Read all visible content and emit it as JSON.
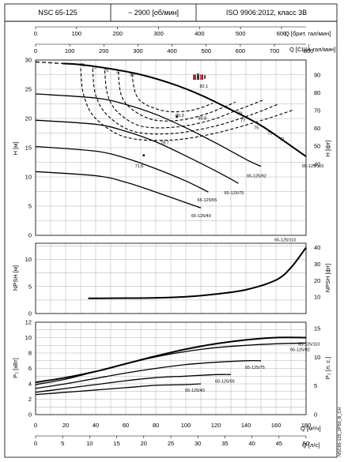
{
  "header": {
    "model": "NSC 65-125",
    "speed": "~ 2900 [об/мин]",
    "standard": "ISO 9906:2012, класс 3B"
  },
  "doc_code": "NSC65-125_2P50_B_CH",
  "colors": {
    "line": "#000000",
    "grid": "#b0b0b0",
    "logo_red": "#b0233a"
  },
  "chart_data": {
    "type": "line",
    "x_axis": {
      "label": "Q [м³/ч]",
      "range": [
        0,
        180
      ],
      "ticks": [
        0,
        20,
        40,
        60,
        80,
        100,
        120,
        140,
        160,
        180
      ],
      "label_l_s": "Q [л/с]",
      "ticks_l_s": [
        0,
        5,
        10,
        15,
        20,
        25,
        30,
        35,
        40,
        45,
        50
      ],
      "label_imp": "Q [брит. гал/мин]",
      "ticks_imp": [
        0,
        100,
        200,
        300,
        400,
        500,
        600
      ],
      "label_us": "Q [США гал/мин]",
      "ticks_us": [
        0,
        100,
        200,
        300,
        400,
        500,
        600,
        700,
        800
      ]
    },
    "panels": {
      "head": {
        "ylabel_left": "H [м]",
        "ylim": [
          0,
          30
        ],
        "yticks": [
          0,
          5,
          10,
          15,
          20,
          25,
          30
        ],
        "ylabel_right": "H [фт]",
        "yticks_right": [
          40,
          50,
          60,
          70,
          80,
          90
        ],
        "series": [
          {
            "name": "65-125/110",
            "x": [
              18,
              30,
              50,
              70,
              90,
              110,
              130,
              150,
              170,
              180
            ],
            "y": [
              29.4,
              29.2,
              28.5,
              27.5,
              26.0,
              24.0,
              21.5,
              18.8,
              15.3,
              13.5
            ]
          },
          {
            "name": "65-125/92",
            "x": [
              0,
              40,
              60,
              80,
              100,
              120,
              140,
              150
            ],
            "y": [
              24.2,
              23.5,
              22.4,
              20.7,
              18.4,
              15.8,
              13.0,
              11.8
            ]
          },
          {
            "name": "65-125/75",
            "x": [
              0,
              40,
              60,
              80,
              100,
              120,
              135
            ],
            "y": [
              19.7,
              19.0,
              17.8,
              16.0,
              13.6,
              11.0,
              8.9
            ]
          },
          {
            "name": "65-125/55",
            "x": [
              0,
              40,
              60,
              80,
              100,
              115
            ],
            "y": [
              15.2,
              14.4,
              13.2,
              11.4,
              9.3,
              7.4
            ]
          },
          {
            "name": "65-125/40",
            "x": [
              0,
              40,
              60,
              80,
              100,
              110
            ],
            "y": [
              10.9,
              10.2,
              9.1,
              7.4,
              5.6,
              4.7
            ]
          }
        ],
        "efficiency_labels": [
          "71",
          "73",
          "75",
          "77",
          "79",
          "82.1",
          "80.3",
          "80.8",
          "78.7",
          "71.6",
          "79",
          "77",
          "75",
          "73",
          "71"
        ]
      },
      "npsh": {
        "ylabel_left": "NPSH [м]",
        "ylim": [
          0,
          13
        ],
        "yticks": [
          0,
          5,
          10
        ],
        "ylabel_right": "NPSH [фт]",
        "yticks_right": [
          10,
          20,
          30,
          40
        ],
        "series": [
          {
            "name": "65-125/110",
            "x": [
              35,
              60,
              80,
              100,
              120,
              140,
              160,
              170,
              180
            ],
            "y": [
              2.8,
              2.85,
              2.9,
              3.1,
              3.6,
              4.4,
              6.2,
              8.5,
              12.2
            ]
          }
        ]
      },
      "power": {
        "ylabel_left": "P₂ [кВт]",
        "ylim": [
          0,
          12
        ],
        "yticks": [
          0,
          2,
          4,
          6,
          8,
          10,
          12
        ],
        "ylabel_right": "P₂ [л. с.]",
        "yticks_right": [
          0,
          5,
          10,
          15
        ],
        "series": [
          {
            "name": "65-125/110",
            "x": [
              0,
              20,
              40,
              60,
              80,
              100,
              120,
              140,
              160,
              180
            ],
            "y": [
              4.2,
              4.8,
              5.6,
              6.6,
              7.6,
              8.5,
              9.2,
              9.7,
              10.0,
              10.0
            ]
          },
          {
            "name": "65-125/92",
            "x": [
              0,
              20,
              40,
              60,
              80,
              100,
              120,
              140,
              160,
              180
            ],
            "y": [
              3.9,
              4.6,
              5.6,
              6.6,
              7.5,
              8.2,
              8.7,
              9.0,
              9.2,
              9.3
            ]
          },
          {
            "name": "65-125/75",
            "x": [
              0,
              20,
              40,
              60,
              80,
              100,
              120,
              140,
              150
            ],
            "y": [
              3.4,
              4.0,
              4.7,
              5.4,
              6.0,
              6.5,
              6.8,
              7.0,
              7.0
            ]
          },
          {
            "name": "65-125/55",
            "x": [
              0,
              20,
              40,
              60,
              80,
              100,
              120,
              130
            ],
            "y": [
              2.9,
              3.4,
              3.9,
              4.4,
              4.8,
              5.0,
              5.2,
              5.2
            ]
          },
          {
            "name": "65-125/40",
            "x": [
              0,
              20,
              40,
              60,
              80,
              100,
              110
            ],
            "y": [
              2.6,
              2.9,
              3.2,
              3.5,
              3.8,
              3.9,
              4.0
            ]
          }
        ]
      }
    }
  }
}
